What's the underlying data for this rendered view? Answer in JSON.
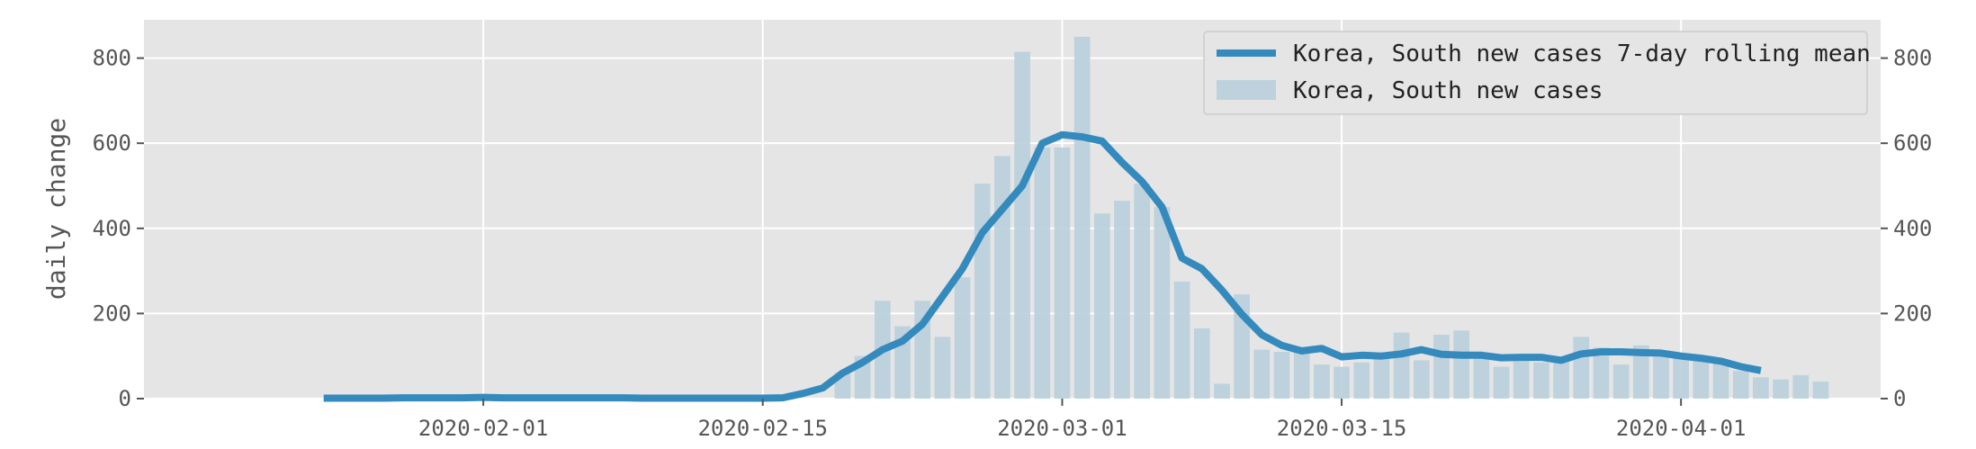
{
  "chart_data": {
    "type": "bar",
    "title": "",
    "ylabel": "daily change",
    "xlabel": "",
    "ylim": [
      0,
      890
    ],
    "yticks": [
      0,
      200,
      400,
      600,
      800
    ],
    "xtick_labels": [
      "2020-02-01",
      "2020-02-15",
      "2020-03-01",
      "2020-03-15",
      "2020-04-01"
    ],
    "grid": true,
    "legend_position": "top-right",
    "colors": {
      "line": "#348ABD",
      "bars": "#b9cfdc",
      "background": "#E5E5E5",
      "grid": "#ffffff"
    },
    "series": [
      {
        "name": "Korea, South new cases 7-day rolling mean",
        "kind": "line",
        "x": [
          "2020-01-24",
          "2020-01-25",
          "2020-01-26",
          "2020-01-27",
          "2020-01-28",
          "2020-01-29",
          "2020-01-30",
          "2020-01-31",
          "2020-02-01",
          "2020-02-02",
          "2020-02-03",
          "2020-02-04",
          "2020-02-05",
          "2020-02-06",
          "2020-02-07",
          "2020-02-08",
          "2020-02-09",
          "2020-02-10",
          "2020-02-11",
          "2020-02-12",
          "2020-02-13",
          "2020-02-14",
          "2020-02-15",
          "2020-02-16",
          "2020-02-17",
          "2020-02-18",
          "2020-02-19",
          "2020-02-20",
          "2020-02-21",
          "2020-02-22",
          "2020-02-23",
          "2020-02-24",
          "2020-02-25",
          "2020-02-26",
          "2020-02-27",
          "2020-02-28",
          "2020-02-29",
          "2020-03-01",
          "2020-03-02",
          "2020-03-03",
          "2020-03-04",
          "2020-03-05",
          "2020-03-06",
          "2020-03-07",
          "2020-03-08",
          "2020-03-09",
          "2020-03-10",
          "2020-03-11",
          "2020-03-12",
          "2020-03-13",
          "2020-03-14",
          "2020-03-15",
          "2020-03-16",
          "2020-03-17",
          "2020-03-18",
          "2020-03-19",
          "2020-03-20",
          "2020-03-21",
          "2020-03-22",
          "2020-03-23",
          "2020-03-24",
          "2020-03-25",
          "2020-03-26",
          "2020-03-27",
          "2020-03-28",
          "2020-03-29",
          "2020-03-30",
          "2020-03-31",
          "2020-04-01",
          "2020-04-02",
          "2020-04-03",
          "2020-04-04",
          "2020-04-05"
        ],
        "values": [
          1,
          1,
          1,
          1,
          2,
          2,
          2,
          2,
          3,
          2,
          2,
          2,
          2,
          2,
          2,
          2,
          1,
          1,
          1,
          1,
          1,
          1,
          1,
          2,
          12,
          25,
          60,
          85,
          115,
          135,
          175,
          240,
          305,
          390,
          445,
          500,
          600,
          620,
          615,
          605,
          555,
          510,
          450,
          330,
          305,
          255,
          198,
          150,
          125,
          112,
          118,
          98,
          102,
          100,
          105,
          115,
          104,
          102,
          102,
          96,
          97,
          97,
          90,
          105,
          110,
          110,
          108,
          107,
          100,
          95,
          88,
          75,
          66
        ]
      },
      {
        "name": "Korea, South new cases",
        "kind": "bar",
        "x": [
          "2020-02-19",
          "2020-02-20",
          "2020-02-21",
          "2020-02-22",
          "2020-02-23",
          "2020-02-24",
          "2020-02-25",
          "2020-02-26",
          "2020-02-27",
          "2020-02-28",
          "2020-02-29",
          "2020-03-01",
          "2020-03-02",
          "2020-03-03",
          "2020-03-04",
          "2020-03-05",
          "2020-03-06",
          "2020-03-07",
          "2020-03-08",
          "2020-03-09",
          "2020-03-10",
          "2020-03-11",
          "2020-03-12",
          "2020-03-13",
          "2020-03-14",
          "2020-03-15",
          "2020-03-16",
          "2020-03-17",
          "2020-03-18",
          "2020-03-19",
          "2020-03-20",
          "2020-03-21",
          "2020-03-22",
          "2020-03-23",
          "2020-03-24",
          "2020-03-25",
          "2020-03-26",
          "2020-03-27",
          "2020-03-28",
          "2020-03-29",
          "2020-03-30",
          "2020-03-31",
          "2020-04-01",
          "2020-04-02",
          "2020-04-03",
          "2020-04-04",
          "2020-04-05",
          "2020-04-06",
          "2020-04-07",
          "2020-04-08"
        ],
        "values": [
          60,
          100,
          230,
          170,
          230,
          145,
          285,
          505,
          570,
          815,
          590,
          590,
          850,
          435,
          465,
          505,
          450,
          275,
          165,
          35,
          245,
          115,
          110,
          110,
          80,
          75,
          85,
          95,
          155,
          90,
          150,
          160,
          100,
          75,
          100,
          85,
          90,
          145,
          120,
          80,
          125,
          100,
          95,
          90,
          90,
          65,
          50,
          45,
          55,
          40
        ]
      }
    ]
  }
}
